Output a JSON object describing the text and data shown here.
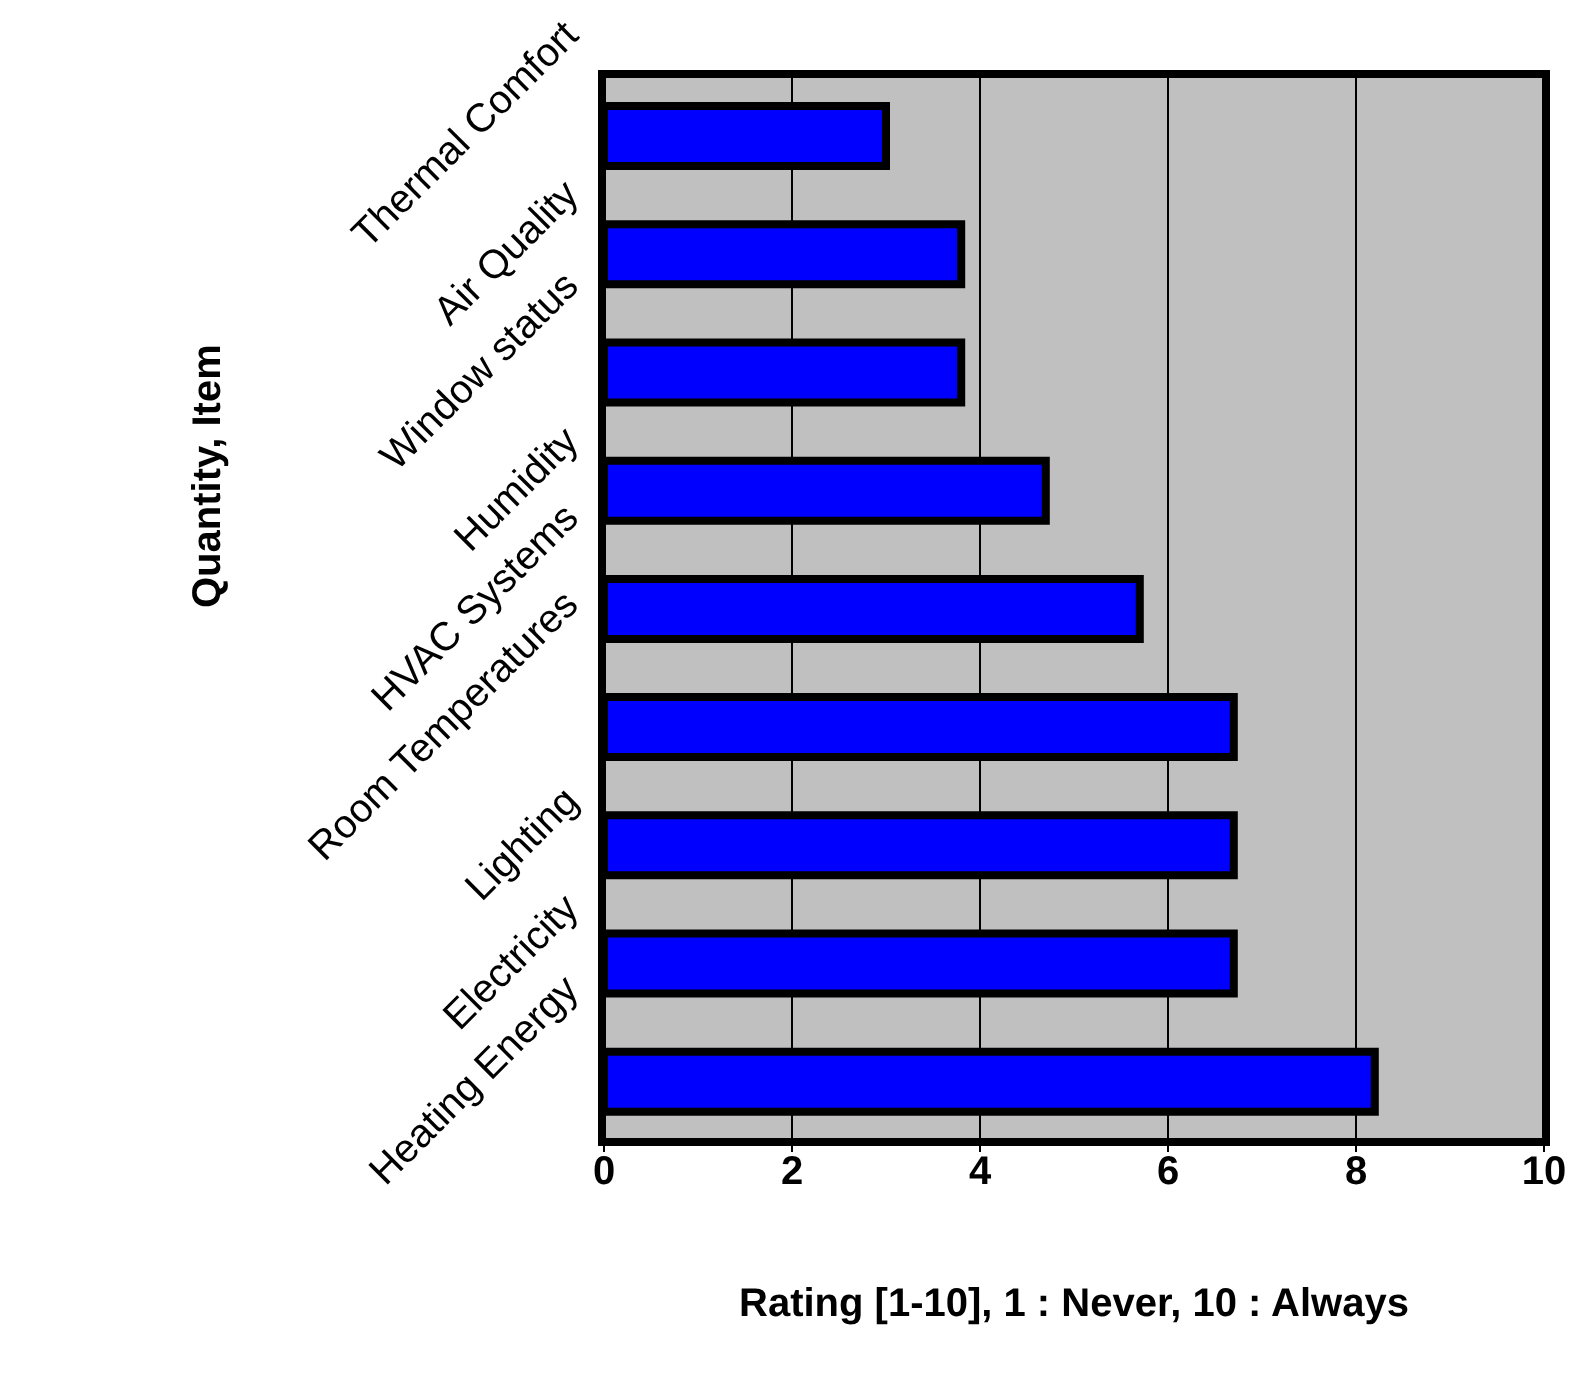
{
  "chart_data": {
    "type": "bar",
    "orientation": "horizontal",
    "xlabel": "Rating [1-10], 1 : Never, 10 : Always",
    "ylabel": "Quantity, Item",
    "categories": [
      "Thermal Comfort",
      "Air Quality",
      "Window status",
      "Humidity",
      "HVAC Systems",
      "Room Temperatures",
      "Lighting",
      "Electricity",
      "Heating Energy"
    ],
    "values": [
      3.0,
      3.8,
      3.8,
      4.7,
      5.7,
      6.7,
      6.7,
      6.7,
      8.2
    ],
    "color": "#0000ff",
    "xlim": [
      0,
      10
    ],
    "xticks": [
      0,
      2,
      4,
      6,
      8,
      10
    ],
    "grid": "x",
    "legend": false
  }
}
